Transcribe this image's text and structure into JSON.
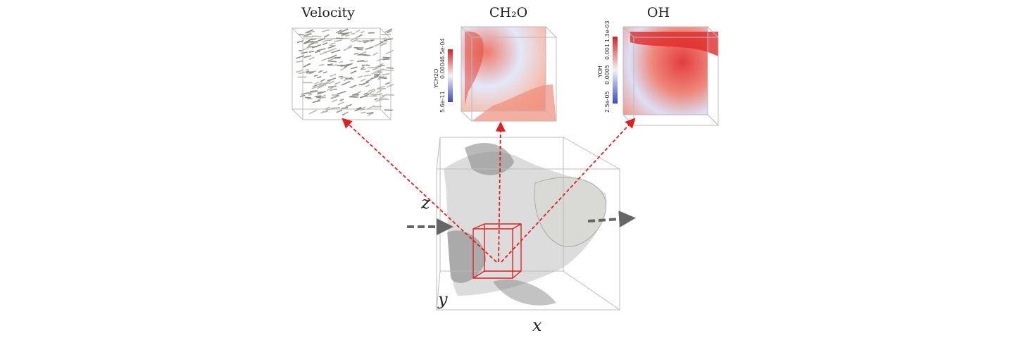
{
  "panels": [
    {
      "title": "Velocity"
    },
    {
      "title": "CH₂O",
      "colorbar": {
        "label": "YCH2O",
        "ticks": [
          "5.6e-11",
          "0.0004",
          "6.5e-04"
        ]
      }
    },
    {
      "title": "OH",
      "colorbar": {
        "label": "YOH",
        "ticks": [
          "2.5e-05",
          "0.0005",
          "0.001",
          "1.3e-03"
        ]
      }
    }
  ],
  "axes": {
    "z": "z",
    "y": "y",
    "x": "x"
  }
}
